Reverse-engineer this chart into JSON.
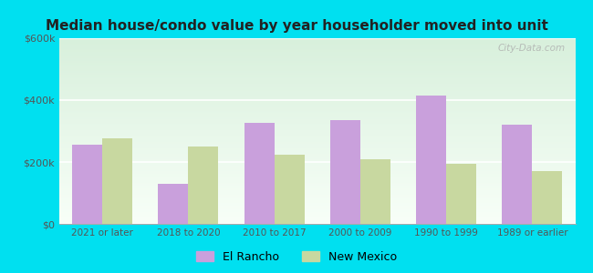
{
  "title": "Median house/condo value by year householder moved into unit",
  "categories": [
    "2021 or later",
    "2018 to 2020",
    "2010 to 2017",
    "2000 to 2009",
    "1990 to 1999",
    "1989 or earlier"
  ],
  "el_rancho": [
    255000,
    130000,
    325000,
    335000,
    415000,
    320000
  ],
  "new_mexico": [
    275000,
    250000,
    225000,
    210000,
    195000,
    170000
  ],
  "el_rancho_color": "#c9a0dc",
  "new_mexico_color": "#c8d8a0",
  "ylim": [
    0,
    600000
  ],
  "yticks": [
    0,
    200000,
    400000,
    600000
  ],
  "ytick_labels": [
    "$0",
    "$200k",
    "$400k",
    "$600k"
  ],
  "background_outer": "#00e0f0",
  "background_inner_top": "#d8f0dc",
  "background_inner_bottom": "#f8fff8",
  "watermark": "City-Data.com",
  "legend_labels": [
    "El Rancho",
    "New Mexico"
  ],
  "bar_width": 0.35
}
